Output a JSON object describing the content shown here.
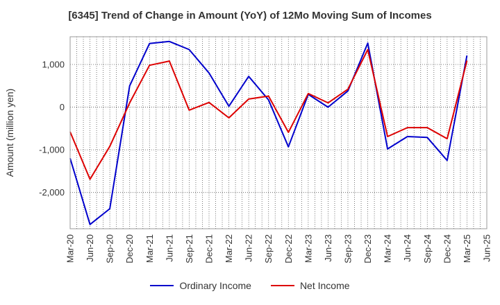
{
  "chart_data": {
    "type": "line",
    "title": "[6345]  Trend of Change in Amount (YoY) of 12Mo Moving Sum of Incomes",
    "ylabel": "Amount (million yen)",
    "xlabel": "",
    "x": [
      "Mar-20",
      "Jun-20",
      "Sep-20",
      "Dec-20",
      "Mar-21",
      "Jun-21",
      "Sep-21",
      "Dec-21",
      "Mar-22",
      "Jun-22",
      "Sep-22",
      "Dec-22",
      "Mar-23",
      "Jun-23",
      "Sep-23",
      "Dec-23",
      "Mar-24",
      "Jun-24",
      "Sep-24",
      "Dec-24",
      "Mar-25",
      "Jun-25"
    ],
    "ylim": [
      -2850,
      1650
    ],
    "yticks": [
      1000,
      0,
      -1000,
      -2000
    ],
    "ytick_labels": [
      "1,000",
      "0",
      "-1,000",
      "-2,000"
    ],
    "grid": true,
    "legend_position": "bottom",
    "series": [
      {
        "name": "Ordinary Income",
        "color": "#0000cc",
        "values": [
          -1200,
          -2750,
          -2380,
          500,
          1490,
          1540,
          1350,
          800,
          20,
          720,
          170,
          -930,
          300,
          0,
          380,
          1500,
          -980,
          -690,
          -710,
          -1250,
          1210,
          null
        ]
      },
      {
        "name": "Net Income",
        "color": "#dd0000",
        "values": [
          -580,
          -1690,
          -920,
          100,
          980,
          1080,
          -70,
          110,
          -250,
          190,
          260,
          -590,
          320,
          100,
          420,
          1350,
          -690,
          -480,
          -480,
          -740,
          1090,
          null
        ]
      }
    ]
  }
}
